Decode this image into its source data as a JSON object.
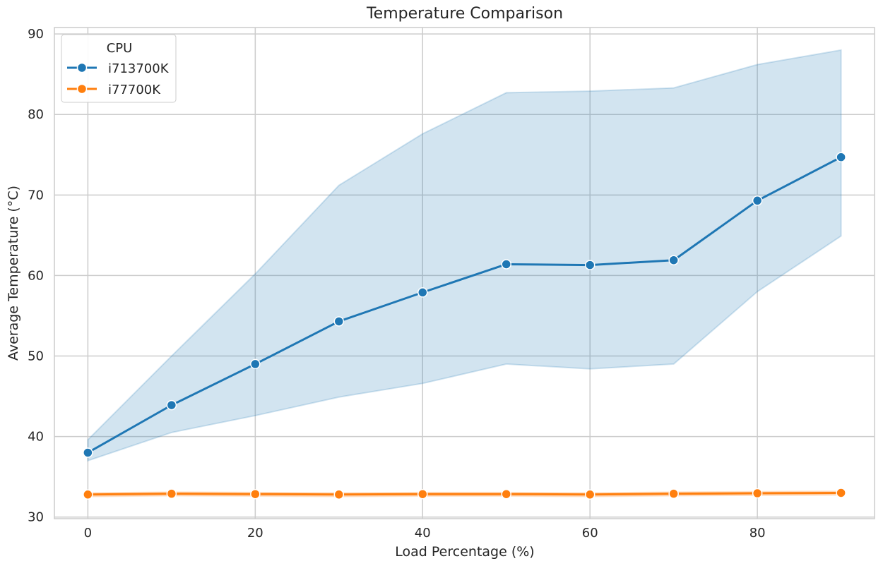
{
  "chart_data": {
    "type": "line",
    "title": "Temperature Comparison",
    "xlabel": "Load Percentage (%)",
    "ylabel": "Average Temperature (°C)",
    "xlim": [
      -4,
      94
    ],
    "ylim": [
      29.8,
      90.8
    ],
    "xticks": [
      0,
      20,
      40,
      60,
      80
    ],
    "yticks": [
      30,
      40,
      50,
      60,
      70,
      80,
      90
    ],
    "x": [
      0,
      10,
      20,
      30,
      40,
      50,
      60,
      70,
      80,
      90
    ],
    "grid": true,
    "legend": {
      "title": "CPU",
      "placement": "top-left"
    },
    "series": [
      {
        "name": "i713700K",
        "color": "#1f77b4",
        "values": [
          38.0,
          43.9,
          49.0,
          54.3,
          57.9,
          61.4,
          61.3,
          61.9,
          69.3,
          74.7
        ],
        "ci_upper": [
          39.6,
          50.0,
          60.2,
          71.2,
          77.6,
          82.7,
          82.9,
          83.3,
          86.2,
          88.0
        ],
        "ci_lower": [
          37.0,
          40.5,
          42.6,
          44.9,
          46.6,
          49.0,
          48.4,
          49.0,
          58.0,
          64.9
        ]
      },
      {
        "name": "i77700K",
        "color": "#ff7f0e",
        "values": [
          32.8,
          32.9,
          32.85,
          32.8,
          32.85,
          32.85,
          32.8,
          32.9,
          32.95,
          33.0
        ],
        "ci_upper": [
          33.0,
          33.1,
          33.05,
          33.0,
          33.05,
          33.05,
          33.0,
          33.1,
          33.15,
          33.2
        ],
        "ci_lower": [
          32.55,
          32.65,
          32.6,
          32.55,
          32.6,
          32.6,
          32.55,
          32.65,
          32.7,
          32.75
        ]
      }
    ]
  }
}
